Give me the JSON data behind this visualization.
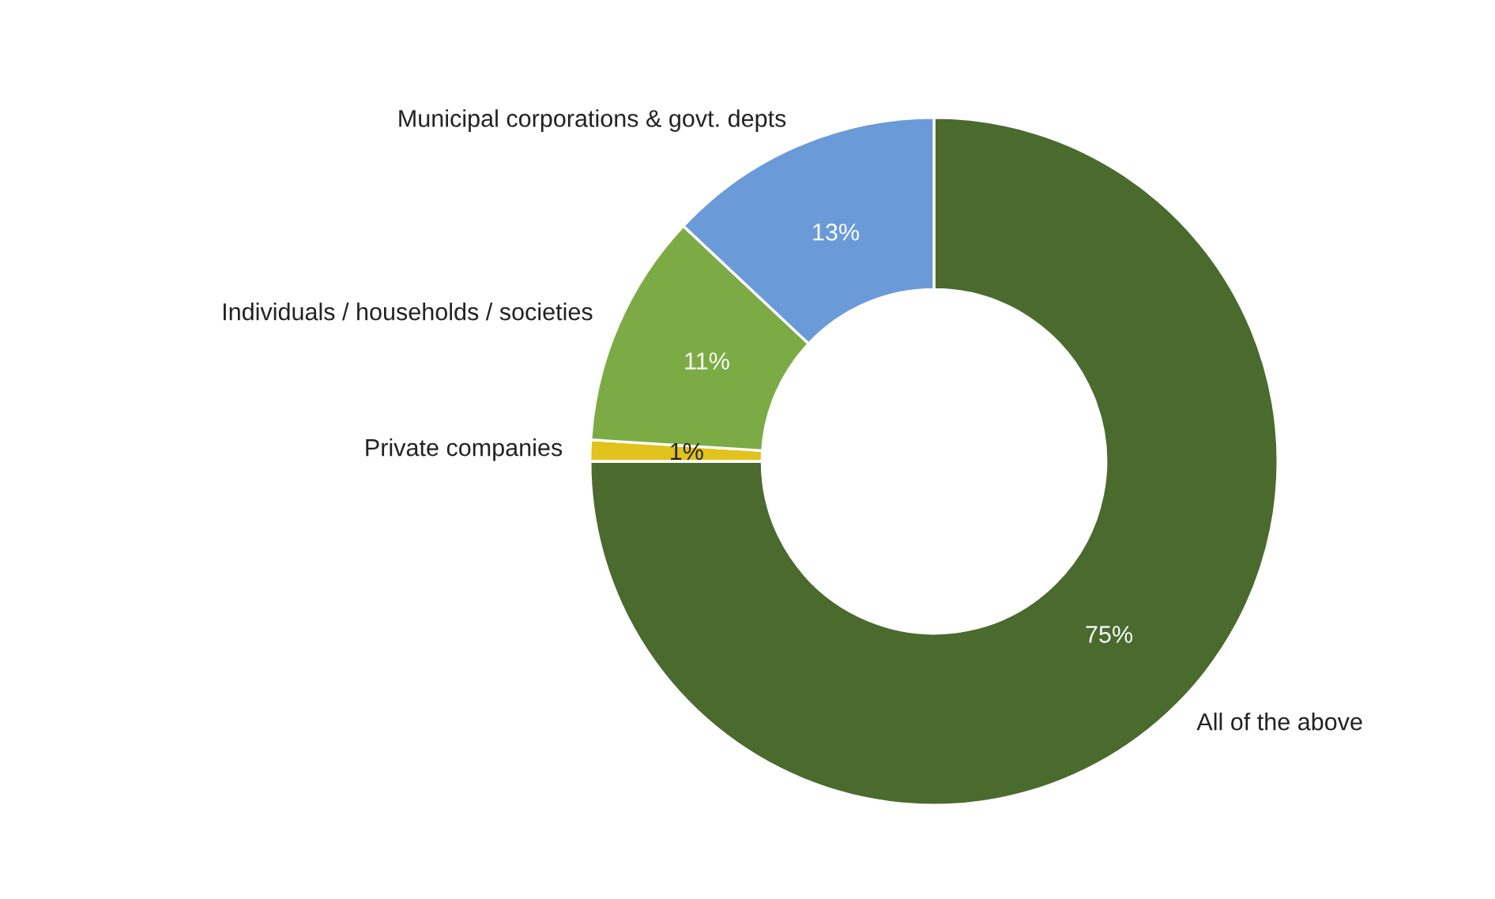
{
  "chart_data": {
    "type": "donut",
    "categories": [
      "All of the above",
      "Private companies",
      "Individuals / households / societies",
      "Municipal corporations & govt. depts"
    ],
    "values": [
      75,
      1,
      11,
      13
    ],
    "colors": [
      "#4a6a2e",
      "#e2c21c",
      "#7cab45",
      "#6a9bd8"
    ],
    "value_labels": [
      "75%",
      "1%",
      "11%",
      "13%"
    ]
  }
}
